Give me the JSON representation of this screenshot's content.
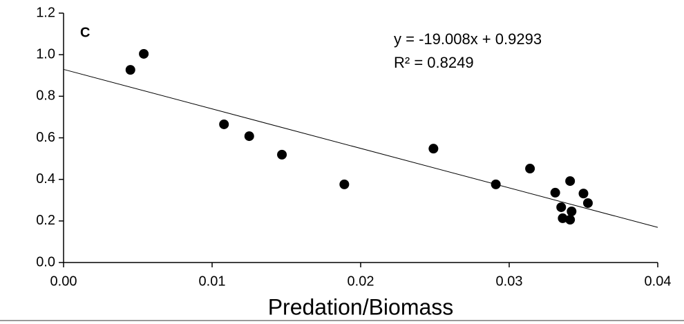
{
  "chart_data": {
    "type": "scatter",
    "panel_label": "C",
    "x_label": "Predation/Biomass",
    "x": [
      0.0045,
      0.0054,
      0.0108,
      0.0125,
      0.0147,
      0.0189,
      0.0249,
      0.0291,
      0.0314,
      0.0331,
      0.0335,
      0.0336,
      0.0341,
      0.0342,
      0.0341,
      0.035,
      0.0353
    ],
    "values": [
      0.927,
      1.004,
      0.665,
      0.608,
      0.519,
      0.376,
      0.548,
      0.376,
      0.452,
      0.336,
      0.266,
      0.213,
      0.392,
      0.246,
      0.206,
      0.332,
      0.286
    ],
    "color": "#000000",
    "trendline": {
      "slope": -19.008,
      "intercept": 0.9293,
      "equation": "y = -19.008x + 0.9293",
      "r_squared": "R² = 0.8249"
    },
    "xlim": [
      0,
      0.04
    ],
    "ylim": [
      0,
      1.2
    ],
    "xticks": [
      {
        "value": 0,
        "label": "0.00"
      },
      0.01,
      0.02,
      0.03,
      0.04
    ],
    "yticks": [
      {
        "value": 0,
        "label": "0.0"
      },
      0.2,
      0.4,
      0.6,
      0.8,
      {
        "value": 1,
        "label": "1.0"
      },
      1.2
    ],
    "grid": false
  }
}
